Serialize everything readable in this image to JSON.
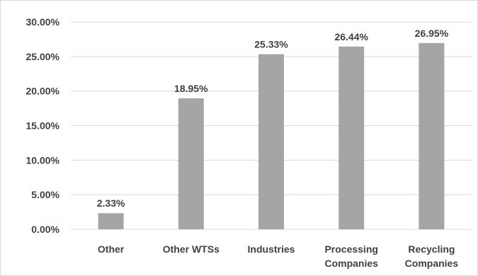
{
  "chart_data": {
    "type": "bar",
    "title": "",
    "xlabel": "",
    "ylabel": "",
    "categories": [
      [
        "Other"
      ],
      [
        "Other WTSs"
      ],
      [
        "Industries"
      ],
      [
        "Processing",
        "Companies"
      ],
      [
        "Recycling",
        "Companies"
      ]
    ],
    "values": [
      2.33,
      18.95,
      25.33,
      26.44,
      26.95
    ],
    "data_labels": [
      "2.33%",
      "18.95%",
      "25.33%",
      "26.44%",
      "26.95%"
    ],
    "ylim": [
      0,
      30
    ],
    "yticks": [
      0,
      5,
      10,
      15,
      20,
      25,
      30
    ],
    "ytick_labels": [
      "0.00%",
      "5.00%",
      "10.00%",
      "15.00%",
      "20.00%",
      "25.00%",
      "30.00%"
    ],
    "grid": true,
    "legend": "none",
    "bar_color": "#a5a5a5",
    "grid_color": "#d9d9d9",
    "text_color": "#404040"
  }
}
